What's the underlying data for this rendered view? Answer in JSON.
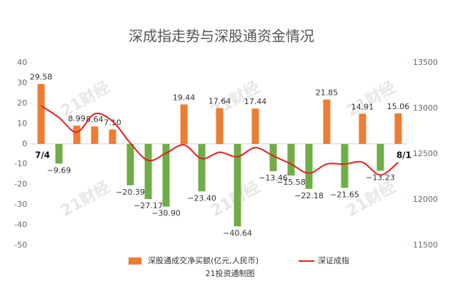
{
  "chart_data": {
    "type": "bar-line",
    "title": "深成指走势与深股通资金情况",
    "footer": "21投资通制图",
    "watermark": "21财经",
    "categories": [
      "7/4",
      null,
      null,
      null,
      null,
      null,
      null,
      null,
      null,
      null,
      null,
      null,
      null,
      null,
      null,
      null,
      null,
      null,
      null,
      null,
      "8/1"
    ],
    "series": [
      {
        "name": "深股通成交净买额(亿元,人民币)",
        "type": "bar",
        "color": "#ed7d31",
        "negative_color": "#70ad47",
        "values": [
          29.58,
          -9.69,
          8.99,
          8.64,
          7.1,
          -20.39,
          -27.17,
          -30.9,
          19.44,
          -23.4,
          17.64,
          -40.64,
          17.44,
          -13.46,
          -15.58,
          -22.18,
          21.85,
          -21.65,
          14.91,
          -13.23,
          15.06
        ],
        "value_labels": [
          "29.58",
          "−9.69",
          "8.99",
          "8.64",
          "7.10",
          "−20.39",
          "−27.17",
          "−30.90",
          "19.44",
          "−23.40",
          "17.64",
          "−40.64",
          "17.44",
          "−13.46",
          "−15.58",
          "−22.18",
          "21.85",
          "−21.65",
          "14.91",
          "−13.23",
          "15.06"
        ]
      },
      {
        "name": "深证成指",
        "type": "line",
        "color": "#e02020",
        "axis": "y2",
        "values": [
          13030,
          12900,
          12740,
          12940,
          12860,
          12620,
          12430,
          12510,
          12600,
          12450,
          12520,
          12470,
          12570,
          12480,
          12390,
          12290,
          12390,
          12390,
          12410,
          12270,
          12410
        ]
      }
    ],
    "ylim": [
      -50,
      40
    ],
    "yticks": [
      -50,
      -40,
      -30,
      -20,
      -10,
      0,
      10,
      20,
      30,
      40
    ],
    "y2lim": [
      11500,
      13500
    ],
    "y2ticks": [
      11500,
      12000,
      12500,
      13000,
      13500
    ],
    "grid": false
  }
}
